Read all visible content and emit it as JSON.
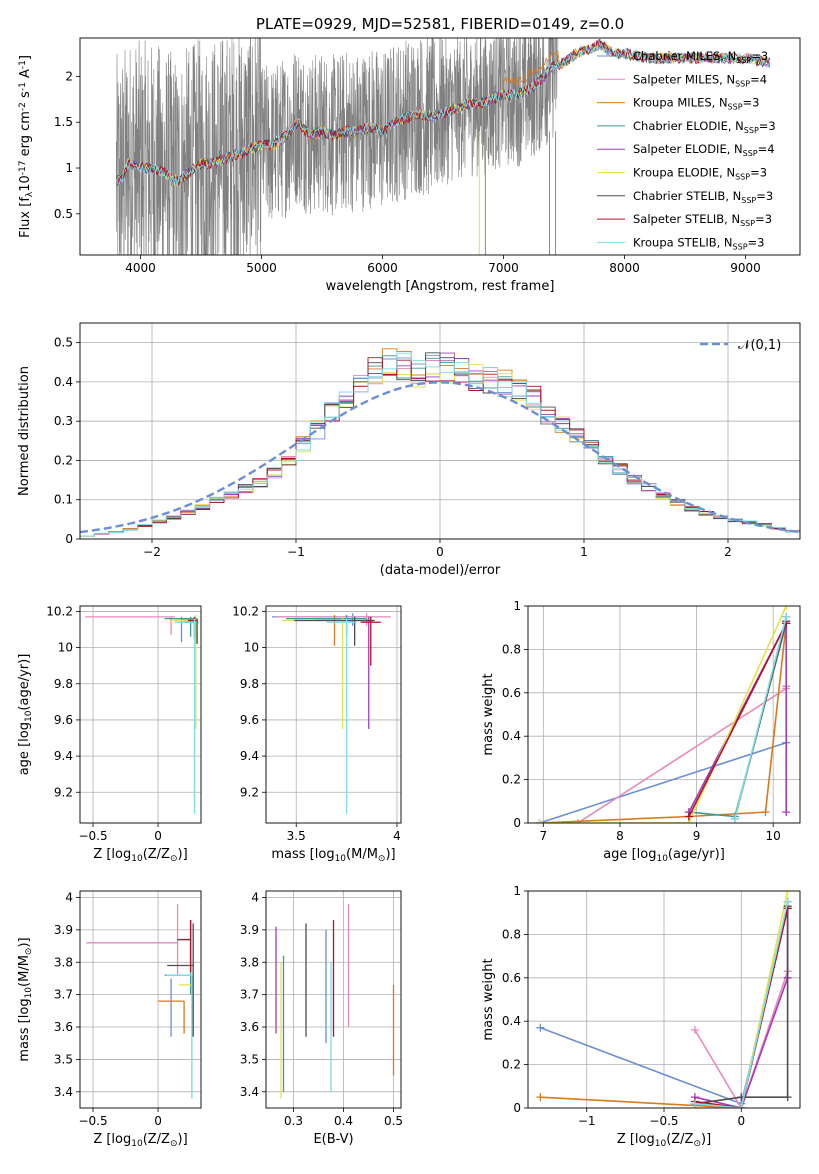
{
  "title": "PLATE=0929, MJD=52581, FIBERID=0149, z=0.0",
  "colors": {
    "Chabrier MILES": "#6b8fd6",
    "Salpeter MILES": "#e889bd",
    "Kroupa MILES": "#d97a1a",
    "Chabrier ELODIE": "#3c9a8e",
    "Salpeter ELODIE": "#a33bbf",
    "Kroupa ELODIE": "#e3e34a",
    "Chabrier STELIB": "#4d4d4d",
    "Salpeter STELIB": "#b0102a",
    "Kroupa STELIB": "#7fdde3",
    "data": "#808080",
    "gauss": "#6b8fd6"
  },
  "chart_data": [
    {
      "id": "spectrum",
      "type": "line",
      "xlabel": "wavelength [Angstrom, rest frame]",
      "ylabel": "Flux [f$_\\lambda$10$^{-17}$ erg cm$^{-2}$ s$^{-1}$ A$^{-1}$]",
      "xlim": [
        3500,
        9450
      ],
      "ylim": [
        0.05,
        2.42
      ],
      "xticks": [
        4000,
        5000,
        6000,
        7000,
        8000,
        9000
      ],
      "yticks": [
        0.5,
        1.0,
        1.5,
        2.0
      ],
      "legend": {
        "placement": "right",
        "entries": [
          {
            "name": "Chabrier MILES",
            "nssp": "3"
          },
          {
            "name": "Salpeter MILES",
            "nssp": "4"
          },
          {
            "name": "Kroupa MILES",
            "nssp": "3"
          },
          {
            "name": "Chabrier ELODIE",
            "nssp": "3"
          },
          {
            "name": "Salpeter ELODIE",
            "nssp": "4"
          },
          {
            "name": "Kroupa ELODIE",
            "nssp": "3"
          },
          {
            "name": "Chabrier STELIB",
            "nssp": "3"
          },
          {
            "name": "Salpeter STELIB",
            "nssp": "3"
          },
          {
            "name": "Kroupa STELIB",
            "nssp": "3"
          }
        ]
      },
      "model_continuum": {
        "x": [
          3800,
          3850,
          3900,
          4000,
          4100,
          4200,
          4300,
          4400,
          4500,
          4600,
          4700,
          4800,
          4900,
          5000,
          5100,
          5200,
          5300,
          5400,
          5500,
          5600,
          5700,
          5800,
          5900,
          6000,
          6100,
          6200,
          6300,
          6400,
          6500,
          6600,
          6700,
          6800,
          6900,
          7000,
          7100,
          7200,
          7300,
          7400,
          7500,
          7600,
          7700,
          7800,
          7900,
          8000,
          8200,
          8400,
          8600,
          8800,
          9000,
          9200
        ],
        "y": [
          0.85,
          0.9,
          1.05,
          1.0,
          1.0,
          0.95,
          0.85,
          0.95,
          1.05,
          1.05,
          1.1,
          1.15,
          1.2,
          1.25,
          1.25,
          1.35,
          1.5,
          1.35,
          1.4,
          1.35,
          1.4,
          1.4,
          1.45,
          1.4,
          1.5,
          1.55,
          1.6,
          1.55,
          1.6,
          1.65,
          1.7,
          1.7,
          1.75,
          1.8,
          1.8,
          1.85,
          1.95,
          2.1,
          2.15,
          2.25,
          2.3,
          2.35,
          2.25,
          2.25,
          2.2,
          2.2,
          2.2,
          2.2,
          2.2,
          2.15
        ]
      },
      "data_noise_range": [
        3800,
        7450
      ]
    },
    {
      "id": "residuals",
      "type": "line",
      "xlabel": "(data-model)/error",
      "ylabel": "Normed distribution",
      "xlim": [
        -2.5,
        2.5
      ],
      "ylim": [
        0,
        0.55
      ],
      "xticks": [
        -2,
        -1,
        0,
        1,
        2
      ],
      "yticks": [
        0.0,
        0.1,
        0.2,
        0.3,
        0.4,
        0.5
      ],
      "legend": {
        "placement": "top-right",
        "entries": [
          "$\\mathcal{N}(0,1)$"
        ]
      },
      "bin_width": 0.1,
      "histogram_envelope": {
        "x": [
          -2.5,
          -2.2,
          -2.0,
          -1.8,
          -1.6,
          -1.4,
          -1.2,
          -1.0,
          -0.8,
          -0.6,
          -0.4,
          -0.3,
          -0.2,
          0.0,
          0.2,
          0.4,
          0.6,
          0.8,
          1.0,
          1.2,
          1.4,
          1.6,
          1.8,
          2.0,
          2.2,
          2.5
        ],
        "y": [
          0.005,
          0.02,
          0.04,
          0.06,
          0.09,
          0.12,
          0.15,
          0.22,
          0.3,
          0.38,
          0.44,
          0.46,
          0.42,
          0.44,
          0.42,
          0.4,
          0.38,
          0.3,
          0.25,
          0.19,
          0.14,
          0.1,
          0.07,
          0.05,
          0.04,
          0.015
        ]
      }
    },
    {
      "id": "age-vs-Z",
      "type": "scatter",
      "xlabel": "Z [log$_{10}$(Z/Z$_\\odot$)]",
      "ylabel": "age  [log$_{10}$(age/yr)]",
      "xlim": [
        -0.6,
        0.33
      ],
      "ylim": [
        9.03,
        10.23
      ],
      "xticks": [
        -0.5,
        0.0
      ],
      "yticks": [
        9.2,
        9.4,
        9.6,
        9.8,
        10.0,
        10.2
      ],
      "points": [
        {
          "series": "Salpeter MILES",
          "x": 0.1,
          "y": 10.17,
          "xerr": [
            0.66,
            0.03
          ],
          "yerr": [
            0.1,
            0.0
          ]
        },
        {
          "series": "Chabrier MILES",
          "x": 0.18,
          "y": 10.15,
          "xerr": [
            0.05,
            0.05
          ],
          "yerr": [
            0.12,
            0.02
          ]
        },
        {
          "series": "Kroupa MILES",
          "x": 0.28,
          "y": 10.16,
          "xerr": [
            0.1,
            0.02
          ],
          "yerr": [
            0.1,
            0.01
          ]
        },
        {
          "series": "Chabrier ELODIE",
          "x": 0.25,
          "y": 10.16,
          "xerr": [
            0.2,
            0.05
          ],
          "yerr": [
            0.1,
            0.01
          ]
        },
        {
          "series": "Salpeter ELODIE",
          "x": 0.29,
          "y": 10.15,
          "xerr": [
            0.1,
            0.01
          ],
          "yerr": [
            0.12,
            0.02
          ]
        },
        {
          "series": "Kroupa ELODIE",
          "x": 0.29,
          "y": 10.15,
          "xerr": [
            0.2,
            0.01
          ],
          "yerr": [
            0.6,
            0.03
          ]
        },
        {
          "series": "Chabrier STELIB",
          "x": 0.3,
          "y": 10.14,
          "xerr": [
            0.1,
            0.01
          ],
          "yerr": [
            0.12,
            0.02
          ]
        },
        {
          "series": "Salpeter STELIB",
          "x": 0.28,
          "y": 10.15,
          "xerr": [
            0.05,
            0.02
          ],
          "yerr": [
            0.1,
            0.02
          ]
        },
        {
          "series": "Kroupa STELIB",
          "x": 0.28,
          "y": 10.14,
          "xerr": [
            0.15,
            0.02
          ],
          "yerr": [
            1.06,
            0.02
          ]
        }
      ]
    },
    {
      "id": "age-vs-mass",
      "type": "scatter",
      "xlabel": "mass [log$_{10}$(M/M$_\\odot$)]",
      "ylabel": "",
      "xlim": [
        3.35,
        4.02
      ],
      "ylim": [
        9.03,
        10.23
      ],
      "xticks": [
        3.5,
        4.0
      ],
      "yticks": [
        9.2,
        9.4,
        9.6,
        9.8,
        10.0,
        10.2
      ],
      "points": [
        {
          "series": "Chabrier MILES",
          "x": 3.78,
          "y": 10.17,
          "xerr": [
            0.4,
            0.1
          ],
          "yerr": [
            0.05,
            0.02
          ]
        },
        {
          "series": "Salpeter MILES",
          "x": 3.85,
          "y": 10.17,
          "xerr": [
            0.45,
            0.12
          ],
          "yerr": [
            0.05,
            0.02
          ]
        },
        {
          "series": "Kroupa MILES",
          "x": 3.69,
          "y": 10.16,
          "xerr": [
            0.1,
            0.05
          ],
          "yerr": [
            0.15,
            0.02
          ]
        },
        {
          "series": "Chabrier ELODIE",
          "x": 3.75,
          "y": 10.16,
          "xerr": [
            0.3,
            0.1
          ],
          "yerr": [
            0.1,
            0.02
          ]
        },
        {
          "series": "Salpeter ELODIE",
          "x": 3.86,
          "y": 10.15,
          "xerr": [
            0.1,
            0.02
          ],
          "yerr": [
            0.6,
            0.02
          ]
        },
        {
          "series": "Kroupa ELODIE",
          "x": 3.73,
          "y": 10.15,
          "xerr": [
            0.3,
            0.05
          ],
          "yerr": [
            0.6,
            0.02
          ]
        },
        {
          "series": "Chabrier STELIB",
          "x": 3.79,
          "y": 10.15,
          "xerr": [
            0.3,
            0.1
          ],
          "yerr": [
            0.14,
            0.02
          ]
        },
        {
          "series": "Salpeter STELIB",
          "x": 3.87,
          "y": 10.14,
          "xerr": [
            0.05,
            0.05
          ],
          "yerr": [
            0.24,
            0.03
          ]
        },
        {
          "series": "Kroupa STELIB",
          "x": 3.75,
          "y": 10.14,
          "xerr": [
            0.1,
            0.05
          ],
          "yerr": [
            1.06,
            0.02
          ]
        }
      ]
    },
    {
      "id": "weight-vs-age",
      "type": "line",
      "xlabel": "age  [log$_{10}$(age/yr)]",
      "ylabel": "mass weight",
      "xlim": [
        6.8,
        10.35
      ],
      "ylim": [
        0,
        1
      ],
      "xticks": [
        7,
        8,
        9,
        10
      ],
      "yticks": [
        0.0,
        0.2,
        0.4,
        0.6,
        0.8,
        1.0
      ],
      "series": [
        {
          "name": "Chabrier MILES",
          "x": [
            6.95,
            10.17
          ],
          "y": [
            0.0,
            0.37
          ]
        },
        {
          "name": "Salpeter MILES",
          "x": [
            7.45,
            10.17,
            10.17
          ],
          "y": [
            0.0,
            0.62,
            0.63
          ]
        },
        {
          "name": "Kroupa MILES",
          "x": [
            6.95,
            8.9,
            9.9,
            10.17
          ],
          "y": [
            0.0,
            0.03,
            0.05,
            0.92
          ]
        },
        {
          "name": "Chabrier ELODIE",
          "x": [
            8.9,
            9.5,
            10.17
          ],
          "y": [
            0.05,
            0.03,
            0.92
          ]
        },
        {
          "name": "Salpeter ELODIE",
          "x": [
            8.9,
            10.17,
            10.17,
            10.17
          ],
          "y": [
            0.05,
            0.92,
            0.05,
            0.95
          ]
        },
        {
          "name": "Kroupa ELODIE",
          "x": [
            6.95,
            8.9,
            10.17
          ],
          "y": [
            0.0,
            0.0,
            1.0
          ]
        },
        {
          "name": "Chabrier STELIB",
          "x": [
            9.5,
            10.17
          ],
          "y": [
            0.02,
            0.93
          ]
        },
        {
          "name": "Salpeter STELIB",
          "x": [
            8.9,
            10.17
          ],
          "y": [
            0.03,
            0.92
          ]
        },
        {
          "name": "Kroupa STELIB",
          "x": [
            9.5,
            10.17
          ],
          "y": [
            0.02,
            0.95
          ]
        }
      ]
    },
    {
      "id": "mass-vs-Z",
      "type": "scatter",
      "xlabel": "Z [log$_{10}$(Z/Z$_\\odot$)]",
      "ylabel": "mass [log$_{10}$(M/M$_\\odot$)]",
      "xlim": [
        -0.6,
        0.33
      ],
      "ylim": [
        3.35,
        4.02
      ],
      "xticks": [
        -0.5,
        0.0
      ],
      "yticks": [
        3.4,
        3.5,
        3.6,
        3.7,
        3.8,
        3.9,
        4.0
      ],
      "points": [
        {
          "series": "Salpeter MILES",
          "x": 0.15,
          "y": 3.86,
          "xerr": [
            0.7,
            0.0
          ],
          "yerr": [
            0.1,
            0.12
          ]
        },
        {
          "series": "Chabrier MILES",
          "x": 0.1,
          "y": 3.75,
          "xerr": [
            0.0,
            0.0
          ],
          "yerr": [
            0.18,
            0.0
          ]
        },
        {
          "series": "Kroupa MILES",
          "x": 0.2,
          "y": 3.68,
          "xerr": [
            0.2,
            0.0
          ],
          "yerr": [
            0.1,
            0.0
          ]
        },
        {
          "series": "Chabrier ELODIE",
          "x": 0.25,
          "y": 3.76,
          "xerr": [
            0.2,
            0.0
          ],
          "yerr": [
            0.06,
            0.04
          ]
        },
        {
          "series": "Salpeter ELODIE",
          "x": 0.25,
          "y": 3.87,
          "xerr": [
            0.1,
            0.0
          ],
          "yerr": [
            0.1,
            0.06
          ]
        },
        {
          "series": "Kroupa ELODIE",
          "x": 0.26,
          "y": 3.73,
          "xerr": [
            0.1,
            0.0
          ],
          "yerr": [
            0.35,
            0.0
          ]
        },
        {
          "series": "Chabrier STELIB",
          "x": 0.27,
          "y": 3.79,
          "xerr": [
            0.2,
            0.0
          ],
          "yerr": [
            0.22,
            0.13
          ]
        },
        {
          "series": "Salpeter STELIB",
          "x": 0.25,
          "y": 3.87,
          "xerr": [
            0.1,
            0.0
          ],
          "yerr": [
            0.1,
            0.06
          ]
        },
        {
          "series": "Kroupa STELIB",
          "x": 0.26,
          "y": 3.76,
          "xerr": [
            0.2,
            0.0
          ],
          "yerr": [
            0.38,
            0.0
          ]
        }
      ]
    },
    {
      "id": "mass-vs-EBV",
      "type": "scatter",
      "xlabel": "E(B-V)",
      "ylabel": "",
      "xlim": [
        0.245,
        0.515
      ],
      "ylim": [
        3.35,
        4.02
      ],
      "xticks": [
        0.3,
        0.4,
        0.5
      ],
      "yticks": [
        3.4,
        3.5,
        3.6,
        3.7,
        3.8,
        3.9,
        4.0
      ],
      "points": [
        {
          "series": "Salpeter ELODIE",
          "x": 0.265,
          "y": 3.75,
          "yerr": [
            0.17,
            0.16
          ]
        },
        {
          "series": "Kroupa ELODIE",
          "x": 0.275,
          "y": 3.6,
          "yerr": [
            0.22,
            0.2
          ]
        },
        {
          "series": "Chabrier ELODIE",
          "x": 0.28,
          "y": 3.6,
          "yerr": [
            0.2,
            0.22
          ]
        },
        {
          "series": "Chabrier STELIB",
          "x": 0.325,
          "y": 3.75,
          "yerr": [
            0.18,
            0.17
          ]
        },
        {
          "series": "Chabrier MILES",
          "x": 0.365,
          "y": 3.73,
          "yerr": [
            0.18,
            0.17
          ]
        },
        {
          "series": "Kroupa STELIB",
          "x": 0.375,
          "y": 3.6,
          "yerr": [
            0.2,
            0.2
          ]
        },
        {
          "series": "Salpeter STELIB",
          "x": 0.38,
          "y": 3.75,
          "yerr": [
            0.18,
            0.18
          ]
        },
        {
          "series": "Salpeter MILES",
          "x": 0.41,
          "y": 3.79,
          "yerr": [
            0.19,
            0.19
          ]
        },
        {
          "series": "Kroupa MILES",
          "x": 0.5,
          "y": 3.59,
          "yerr": [
            0.14,
            0.14
          ]
        }
      ]
    },
    {
      "id": "weight-vs-Z",
      "type": "line",
      "xlabel": "Z [log$_{10}$(Z/Z$_\\odot$)]",
      "ylabel": "mass weight",
      "xlim": [
        -1.38,
        0.38
      ],
      "ylim": [
        0,
        1
      ],
      "xticks": [
        -1.0,
        -0.5,
        0.0
      ],
      "yticks": [
        0.0,
        0.2,
        0.4,
        0.6,
        0.8,
        1.0
      ],
      "series": [
        {
          "name": "Chabrier MILES",
          "x": [
            -1.3,
            0.0,
            0.3
          ],
          "y": [
            0.37,
            0.02,
            0.92
          ]
        },
        {
          "name": "Salpeter MILES",
          "x": [
            -0.3,
            0.0,
            0.3
          ],
          "y": [
            0.36,
            0.0,
            0.63
          ]
        },
        {
          "name": "Kroupa MILES",
          "x": [
            -1.3,
            0.0,
            0.3
          ],
          "y": [
            0.05,
            0.0,
            0.92
          ]
        },
        {
          "name": "Chabrier ELODIE",
          "x": [
            -0.3,
            0.0,
            0.3
          ],
          "y": [
            0.02,
            0.0,
            0.92
          ]
        },
        {
          "name": "Salpeter ELODIE",
          "x": [
            -0.3,
            0.0,
            0.3,
            0.3
          ],
          "y": [
            0.05,
            0.0,
            0.6,
            0.95
          ]
        },
        {
          "name": "Kroupa ELODIE",
          "x": [
            -0.3,
            0.0,
            0.3
          ],
          "y": [
            0.0,
            0.0,
            1.0
          ]
        },
        {
          "name": "Chabrier STELIB",
          "x": [
            -0.3,
            0.0,
            0.3,
            0.3
          ],
          "y": [
            0.02,
            0.05,
            0.05,
            0.93
          ]
        },
        {
          "name": "Salpeter STELIB",
          "x": [
            -0.3,
            0.0,
            0.3
          ],
          "y": [
            0.03,
            0.0,
            0.92
          ]
        },
        {
          "name": "Kroupa STELIB",
          "x": [
            -0.3,
            0.0,
            0.3
          ],
          "y": [
            0.02,
            0.0,
            0.95
          ]
        }
      ]
    }
  ]
}
